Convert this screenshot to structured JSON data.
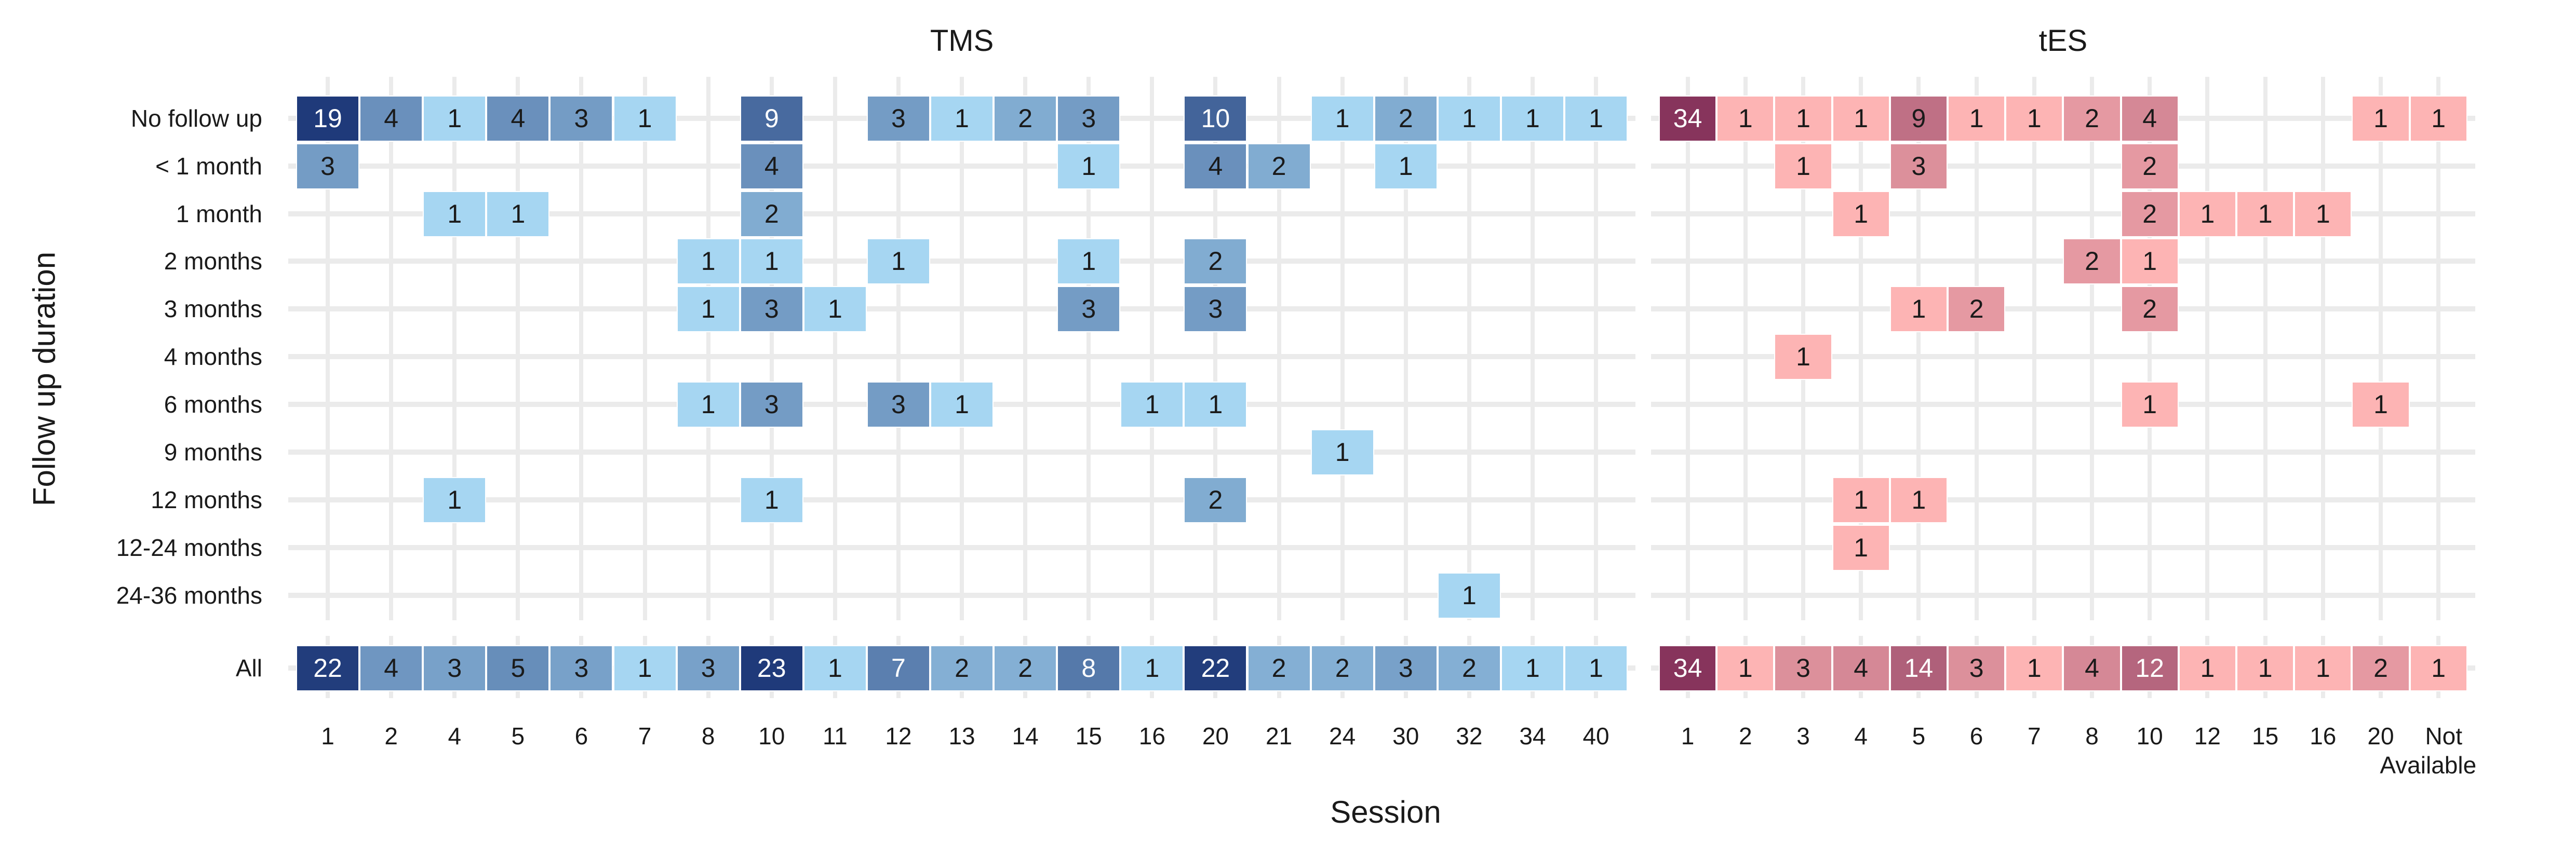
{
  "chart_data": {
    "type": "heatmap",
    "xlabel": "Session",
    "ylabel": "Follow up duration",
    "rows": [
      "No follow up",
      "< 1 month",
      "1 month",
      "2 months",
      "3 months",
      "4 months",
      "6 months",
      "9 months",
      "12 months",
      "12-24 months",
      "24-36 months",
      "All"
    ],
    "panels": [
      {
        "title": "TMS",
        "color_low": "#a6d6f2",
        "color_high": "#1f3a7a",
        "x": [
          "1",
          "2",
          "4",
          "5",
          "6",
          "7",
          "8",
          "10",
          "11",
          "12",
          "13",
          "14",
          "15",
          "16",
          "20",
          "21",
          "24",
          "30",
          "32",
          "34",
          "40"
        ],
        "cells": {
          "No follow up": {
            "1": 19,
            "2": 4,
            "4": 1,
            "5": 4,
            "6": 3,
            "7": 1,
            "10": 9,
            "12": 3,
            "13": 1,
            "14": 2,
            "15": 3,
            "20": 10,
            "24": 1,
            "30": 2,
            "32": 1,
            "34": 1,
            "40": 1
          },
          "< 1 month": {
            "1": 3,
            "10": 4,
            "15": 1,
            "20": 4,
            "21": 2,
            "30": 1
          },
          "1 month": {
            "4": 1,
            "5": 1,
            "10": 2
          },
          "2 months": {
            "8": 1,
            "10": 1,
            "12": 1,
            "15": 1,
            "20": 2
          },
          "3 months": {
            "8": 1,
            "10": 3,
            "11": 1,
            "15": 3,
            "20": 3
          },
          "4 months": {},
          "6 months": {
            "8": 1,
            "10": 3,
            "12": 3,
            "13": 1,
            "16": 1,
            "20": 1
          },
          "9 months": {
            "24": 1
          },
          "12 months": {
            "4": 1,
            "10": 1,
            "20": 2
          },
          "12-24 months": {},
          "24-36 months": {
            "32": 1
          },
          "All": {
            "1": 22,
            "2": 4,
            "4": 3,
            "5": 5,
            "6": 3,
            "7": 1,
            "8": 3,
            "10": 23,
            "11": 1,
            "12": 7,
            "13": 2,
            "14": 2,
            "15": 8,
            "16": 1,
            "20": 22,
            "21": 2,
            "24": 2,
            "30": 3,
            "32": 2,
            "34": 1,
            "40": 1
          }
        }
      },
      {
        "title": "tES",
        "color_low": "#fdb4b4",
        "color_high": "#87345c",
        "x": [
          "1",
          "2",
          "3",
          "4",
          "5",
          "6",
          "7",
          "8",
          "10",
          "12",
          "15",
          "16",
          "20",
          "Not Available"
        ],
        "cells": {
          "No follow up": {
            "1": 34,
            "2": 1,
            "3": 1,
            "4": 1,
            "5": 9,
            "6": 1,
            "7": 1,
            "8": 2,
            "10": 4,
            "20": 1,
            "Not Available": 1
          },
          "< 1 month": {
            "3": 1,
            "5": 3,
            "10": 2
          },
          "1 month": {
            "4": 1,
            "10": 2,
            "12": 1,
            "15": 1,
            "16": 1
          },
          "2 months": {
            "8": 2,
            "10": 1
          },
          "3 months": {
            "5": 1,
            "6": 2,
            "10": 2
          },
          "4 months": {
            "3": 1
          },
          "6 months": {
            "10": 1,
            "20": 1
          },
          "9 months": {},
          "12 months": {
            "4": 1,
            "5": 1
          },
          "12-24 months": {
            "4": 1
          },
          "24-36 months": {},
          "All": {
            "1": 34,
            "2": 1,
            "3": 3,
            "4": 4,
            "5": 14,
            "6": 3,
            "7": 1,
            "8": 4,
            "10": 12,
            "12": 1,
            "15": 1,
            "16": 1,
            "20": 2,
            "Not Available": 1
          }
        }
      }
    ]
  },
  "labels": {
    "tms_title": "TMS",
    "tes_title": "tES",
    "x_title": "Session",
    "y_title": "Follow up duration"
  }
}
